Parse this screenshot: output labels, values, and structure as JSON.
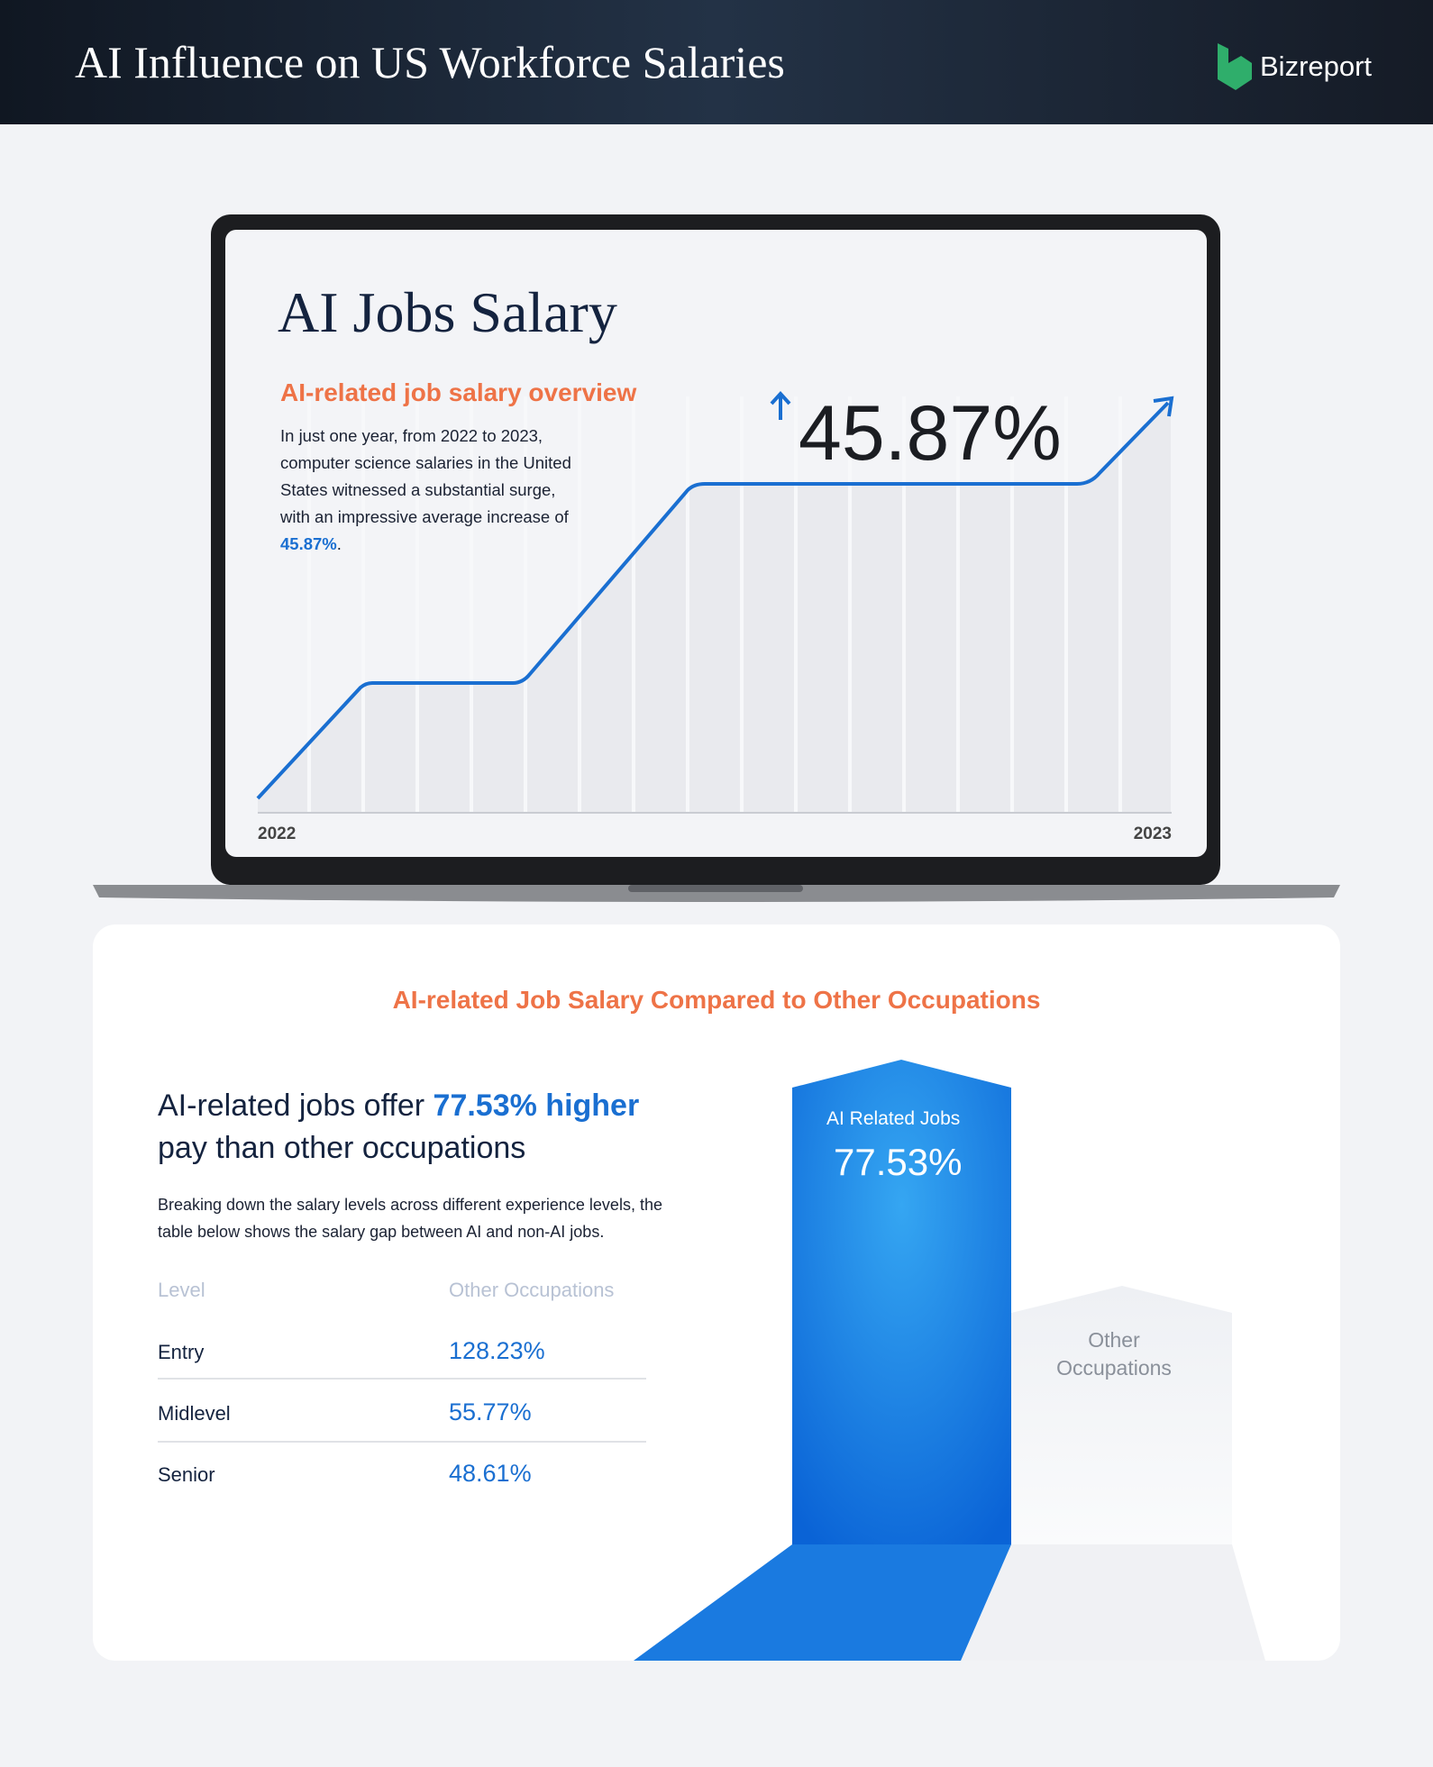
{
  "header": {
    "title": "AI Influence on US Workforce Salaries",
    "brand": "Bizreport"
  },
  "laptop": {
    "title": "AI Jobs Salary",
    "subtitle": "AI-related job salary overview",
    "body": [
      "In just one year, from 2022 to 2023, computer science salaries in the United States witnessed a substantial surge, with an impressive average increase of ",
      "45.87%",
      "."
    ],
    "stat": "45.87%",
    "x_start": "2022",
    "x_end": "2023"
  },
  "comparison": {
    "title": "AI-related Job Salary Compared to Other Occupations",
    "headline": [
      "AI-related jobs offer ",
      "77.53% higher",
      " pay than other occupations"
    ],
    "body": "Breaking down the salary levels across different experience levels, the table below shows the salary gap between AI and non-AI jobs.",
    "table": {
      "headers": [
        "Level",
        "Other Occupations"
      ],
      "rows": [
        [
          "Entry",
          "128.23%"
        ],
        [
          "Midlevel",
          "55.77%"
        ],
        [
          "Senior",
          "48.61%"
        ]
      ]
    },
    "ai_label": "AI Related Jobs",
    "ai_value": "77.53%",
    "other_label": "Other Occupations"
  }
}
